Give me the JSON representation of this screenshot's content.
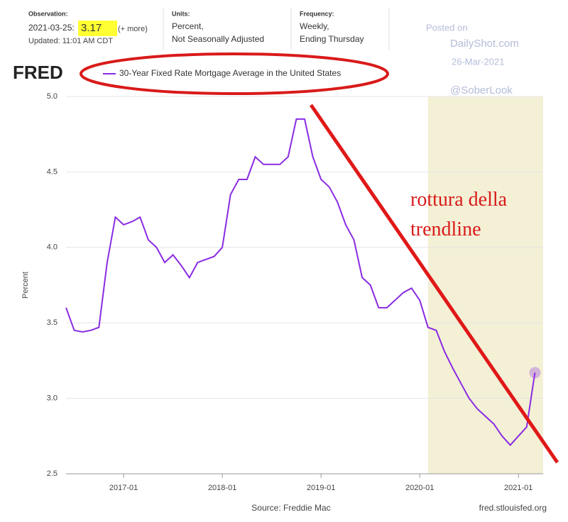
{
  "header": {
    "observation_label": "Observation:",
    "observation_date": "2021-03-25:",
    "observation_value": "3.17",
    "more": "(+ more)",
    "updated": "Updated: 11:01 AM CDT",
    "units_label": "Units:",
    "units_1": "Percent,",
    "units_2": "Not Seasonally Adjusted",
    "frequency_label": "Frequency:",
    "frequency_1": "Weekly,",
    "frequency_2": "Ending Thursday",
    "logo": "FRED"
  },
  "watermark": {
    "posted": "Posted on",
    "site": "DailyShot.com",
    "date": "26-Mar-2021",
    "handle": "@SoberLook"
  },
  "annotation": "rottura della trendline",
  "chart_data": {
    "type": "line",
    "y_label": "Percent",
    "source": "Source: Freddie Mac",
    "site": "fred.stlouisfed.org",
    "x": [
      "2016-06",
      "2016-07",
      "2016-08",
      "2016-09",
      "2016-10",
      "2016-11",
      "2016-12",
      "2017-01",
      "2017-02",
      "2017-03",
      "2017-04",
      "2017-05",
      "2017-06",
      "2017-07",
      "2017-08",
      "2017-09",
      "2017-10",
      "2017-11",
      "2017-12",
      "2018-01",
      "2018-02",
      "2018-03",
      "2018-04",
      "2018-05",
      "2018-06",
      "2018-07",
      "2018-08",
      "2018-09",
      "2018-10",
      "2018-11",
      "2018-12",
      "2019-01",
      "2019-02",
      "2019-03",
      "2019-04",
      "2019-05",
      "2019-06",
      "2019-07",
      "2019-08",
      "2019-09",
      "2019-10",
      "2019-11",
      "2019-12",
      "2020-01",
      "2020-02",
      "2020-03",
      "2020-04",
      "2020-05",
      "2020-06",
      "2020-07",
      "2020-08",
      "2020-09",
      "2020-10",
      "2020-11",
      "2020-12",
      "2021-01",
      "2021-02",
      "2021-03"
    ],
    "series": [
      {
        "name": "30-Year Fixed Rate Mortgage Average in the United States",
        "color": "#8a2be2",
        "values": [
          3.6,
          3.45,
          3.44,
          3.45,
          3.47,
          3.9,
          4.2,
          4.15,
          4.17,
          4.2,
          4.05,
          4.0,
          3.9,
          3.95,
          3.88,
          3.8,
          3.9,
          3.92,
          3.94,
          4.0,
          4.35,
          4.45,
          4.45,
          4.6,
          4.55,
          4.55,
          4.55,
          4.6,
          4.85,
          4.85,
          4.6,
          4.45,
          4.4,
          4.3,
          4.15,
          4.05,
          3.8,
          3.75,
          3.6,
          3.6,
          3.65,
          3.7,
          3.73,
          3.65,
          3.47,
          3.45,
          3.31,
          3.2,
          3.1,
          3.0,
          2.93,
          2.88,
          2.83,
          2.75,
          2.69,
          2.75,
          2.81,
          3.17
        ]
      }
    ],
    "shaded_range": [
      "2020-02",
      "2021-04"
    ],
    "xlim": [
      "2016-06",
      "2021-04"
    ],
    "xticks": [
      "2017-01",
      "2018-01",
      "2019-01",
      "2020-01",
      "2021-01"
    ],
    "ylim": [
      2.5,
      5.0
    ],
    "yticks": [
      {
        "value": 2.5,
        "label": "2.5"
      },
      {
        "value": 3.0,
        "label": "3.0"
      },
      {
        "value": 3.5,
        "label": "3.5"
      },
      {
        "value": 4.0,
        "label": "4.0"
      },
      {
        "value": 4.5,
        "label": "4.5"
      },
      {
        "value": 5.0,
        "label": "5.0"
      }
    ],
    "grid": true
  }
}
